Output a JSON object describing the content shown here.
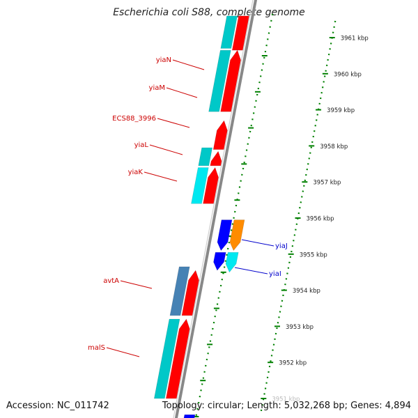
{
  "title": "Escherichia coli S88, complete genome",
  "footer": {
    "accession": "Accession: NC_011742",
    "topology": "Topology: circular; Length: 5,032,268 bp; Genes: 4,894"
  },
  "ruler": {
    "ticks": [
      {
        "kbp": 3961,
        "label": "3961 kbp"
      },
      {
        "kbp": 3960,
        "label": "3960 kbp"
      },
      {
        "kbp": 3959,
        "label": "3959 kbp"
      },
      {
        "kbp": 3958,
        "label": "3958 kbp"
      },
      {
        "kbp": 3957,
        "label": "3957 kbp"
      },
      {
        "kbp": 3956,
        "label": "3956 kbp"
      },
      {
        "kbp": 3955,
        "label": "3955 kbp"
      },
      {
        "kbp": 3954,
        "label": "3954 kbp"
      },
      {
        "kbp": 3953,
        "label": "3953 kbp"
      },
      {
        "kbp": 3952,
        "label": "3952 kbp"
      },
      {
        "kbp": 3951,
        "label": "3951 kbp"
      }
    ]
  },
  "colors": {
    "gene_red": "#ff0000",
    "cds_cyan": "#00c8c8",
    "cds_light_cyan": "#00e8f0",
    "gene_blue": "#0000ff",
    "gene_orange": "#ff8c00",
    "cds_steel": "#4682b4",
    "backbone": "#888888",
    "ruler_green": "#008000",
    "label_red": "#cc0000",
    "label_blue": "#0000cc"
  },
  "gene_labels": [
    {
      "name": "yiaN",
      "strand": "reverse",
      "kbp": 3959.75
    },
    {
      "name": "yiaM",
      "strand": "reverse",
      "kbp": 3959.25
    },
    {
      "name": "ECS88_3996",
      "strand": "reverse",
      "kbp": 3958.6
    },
    {
      "name": "yiaL",
      "strand": "reverse",
      "kbp": 3957.9
    },
    {
      "name": "yiaK",
      "strand": "reverse",
      "kbp": 3957.3
    },
    {
      "name": "yiaJ",
      "strand": "forward",
      "kbp": 3955.35
    },
    {
      "name": "yiaI",
      "strand": "forward",
      "kbp": 3954.75
    },
    {
      "name": "avtA",
      "strand": "reverse",
      "kbp": 3954.25
    },
    {
      "name": "malS",
      "strand": "reverse",
      "kbp": 3952.45
    }
  ]
}
